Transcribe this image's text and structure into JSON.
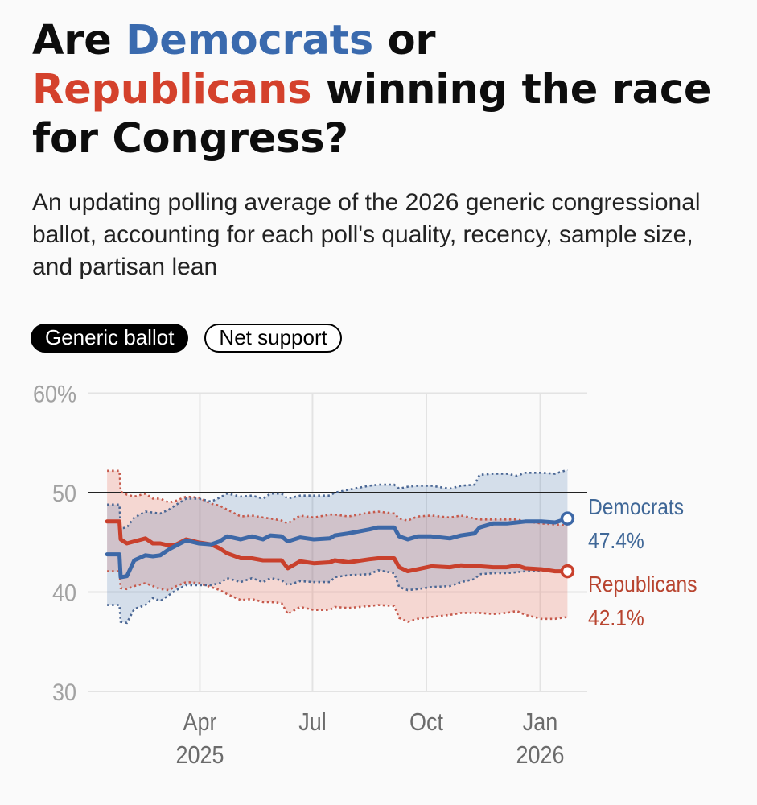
{
  "header": {
    "title": {
      "line1_pre": "Are ",
      "line1_dem": "Democrats",
      "line1_post": " or",
      "line2_rep": "Republicans",
      "line2_post": " winning the race",
      "line3": "for Congress?"
    },
    "subtitle": "An updating polling average of the 2026 generic congressional ballot, accounting for each poll's quality, recency, sample size, and partisan lean"
  },
  "toggle": {
    "options": [
      {
        "label": "Generic ballot",
        "selected": true
      },
      {
        "label": "Net support",
        "selected": false
      }
    ]
  },
  "colors": {
    "title_dem": "#3a6aae",
    "title_rep": "#d4412c",
    "dem_line": "#3d68a7",
    "rep_line": "#c9402c",
    "dem_bound": "#4b6794",
    "rep_bound": "#c65a4c",
    "dem_band": "rgba(60,110,170,0.2)",
    "rep_band": "rgba(232,110,90,0.25)",
    "dem_label": "#3f6797",
    "rep_label": "#b8442f",
    "gridline": "#e3e3e3",
    "reference_line": "#222222",
    "background": "#fafafa"
  },
  "chart_data": {
    "type": "line",
    "title": "",
    "xlabel": "",
    "ylabel": "",
    "x_range": [
      "2025-01-01",
      "2026-02-08"
    ],
    "ylim": [
      30,
      60
    ],
    "grid": true,
    "legend": "right-end labels",
    "reference_line": 50,
    "y_ticks": [
      {
        "value": 30,
        "label": "30"
      },
      {
        "value": 40,
        "label": "40"
      },
      {
        "value": 50,
        "label": "50"
      },
      {
        "value": 60,
        "label": "60%"
      }
    ],
    "x_ticks": [
      {
        "date": "2025-04-01",
        "label": "Apr",
        "sublabel": "2025"
      },
      {
        "date": "2025-07-01",
        "label": "Jul",
        "sublabel": ""
      },
      {
        "date": "2025-10-01",
        "label": "Oct",
        "sublabel": ""
      },
      {
        "date": "2026-01-01",
        "label": "Jan",
        "sublabel": "2026"
      }
    ],
    "dates": [
      "2025-01-16",
      "2025-01-26",
      "2025-01-27",
      "2025-02-01",
      "2025-02-07",
      "2025-02-16",
      "2025-02-22",
      "2025-02-28",
      "2025-03-07",
      "2025-03-13",
      "2025-03-21",
      "2025-03-31",
      "2025-04-10",
      "2025-04-17",
      "2025-04-23",
      "2025-05-04",
      "2025-05-13",
      "2025-05-22",
      "2025-05-28",
      "2025-06-06",
      "2025-06-11",
      "2025-06-21",
      "2025-07-02",
      "2025-07-15",
      "2025-07-19",
      "2025-07-30",
      "2025-08-16",
      "2025-08-23",
      "2025-09-05",
      "2025-09-09",
      "2025-09-16",
      "2025-09-24",
      "2025-10-05",
      "2025-10-20",
      "2025-10-29",
      "2025-11-09",
      "2025-11-13",
      "2025-11-24",
      "2025-12-05",
      "2025-12-13",
      "2025-12-20",
      "2026-01-02",
      "2026-01-13",
      "2026-01-23"
    ],
    "series": [
      {
        "key": "rep",
        "name": "Republicans",
        "final_label": "42.1%",
        "values": [
          47.1,
          47.1,
          45.3,
          44.9,
          45.1,
          45.4,
          44.9,
          44.9,
          44.7,
          44.8,
          45.3,
          45.0,
          44.8,
          44.4,
          43.9,
          43.4,
          43.4,
          43.2,
          43.2,
          43.2,
          42.4,
          43.1,
          42.9,
          43.0,
          43.2,
          43.0,
          43.3,
          43.4,
          43.4,
          42.5,
          42.1,
          42.3,
          42.6,
          42.5,
          42.7,
          42.6,
          42.6,
          42.5,
          42.5,
          42.7,
          42.4,
          42.3,
          42.1,
          42.1
        ],
        "upper": [
          52.2,
          52.2,
          50.1,
          49.8,
          49.6,
          49.9,
          49.4,
          49.4,
          49.0,
          49.2,
          49.6,
          49.5,
          48.9,
          48.7,
          48.3,
          47.6,
          47.7,
          47.5,
          47.4,
          47.2,
          46.9,
          47.7,
          47.5,
          47.8,
          47.8,
          47.6,
          48.0,
          48.1,
          47.9,
          47.4,
          47.2,
          47.6,
          47.7,
          47.5,
          47.7,
          47.4,
          47.3,
          47.3,
          47.3,
          47.3,
          47.1,
          46.9,
          46.8,
          46.7
        ],
        "lower": [
          42.1,
          42.1,
          40.4,
          40.3,
          40.6,
          40.9,
          40.6,
          40.3,
          40.2,
          40.6,
          41.0,
          40.9,
          40.5,
          40.2,
          39.8,
          39.2,
          39.3,
          39.0,
          39.0,
          38.9,
          37.8,
          38.5,
          38.2,
          38.2,
          38.5,
          38.4,
          38.6,
          38.7,
          38.6,
          37.4,
          37.0,
          37.3,
          37.5,
          37.7,
          37.9,
          37.9,
          37.9,
          37.8,
          37.9,
          38.1,
          37.7,
          37.3,
          37.3,
          37.5
        ]
      },
      {
        "key": "dem",
        "name": "Democrats",
        "final_label": "47.4%",
        "values": [
          43.8,
          43.8,
          41.5,
          41.6,
          43.2,
          43.7,
          43.6,
          43.7,
          44.3,
          44.7,
          45.2,
          44.9,
          44.8,
          45.1,
          45.6,
          45.3,
          45.6,
          45.3,
          45.7,
          45.6,
          45.1,
          45.5,
          45.3,
          45.4,
          45.7,
          45.9,
          46.3,
          46.5,
          46.5,
          45.6,
          45.3,
          45.6,
          45.6,
          45.4,
          45.7,
          45.9,
          46.5,
          46.9,
          46.9,
          47.0,
          47.1,
          47.1,
          47.0,
          47.4
        ],
        "upper": [
          48.8,
          48.8,
          46.4,
          46.5,
          47.5,
          48.1,
          48.0,
          47.9,
          48.3,
          48.8,
          49.4,
          49.4,
          49.1,
          49.5,
          49.9,
          49.6,
          49.7,
          49.4,
          49.9,
          49.9,
          49.4,
          49.7,
          49.7,
          49.7,
          50.0,
          50.3,
          50.7,
          50.8,
          50.8,
          50.4,
          50.6,
          50.7,
          50.7,
          50.4,
          50.7,
          50.8,
          51.8,
          51.9,
          51.9,
          51.7,
          52.0,
          52.0,
          51.9,
          52.3
        ],
        "lower": [
          38.7,
          38.7,
          37.0,
          36.9,
          38.3,
          38.7,
          39.4,
          39.1,
          39.7,
          40.2,
          40.7,
          40.7,
          40.7,
          40.9,
          41.4,
          41.0,
          41.4,
          41.0,
          41.4,
          41.2,
          40.7,
          41.1,
          41.0,
          41.0,
          41.5,
          41.7,
          41.8,
          42.2,
          41.9,
          40.5,
          40.2,
          40.3,
          40.5,
          40.6,
          41.0,
          41.3,
          41.8,
          41.9,
          41.9,
          42.0,
          42.1,
          42.1,
          42.1,
          42.1
        ]
      }
    ]
  }
}
